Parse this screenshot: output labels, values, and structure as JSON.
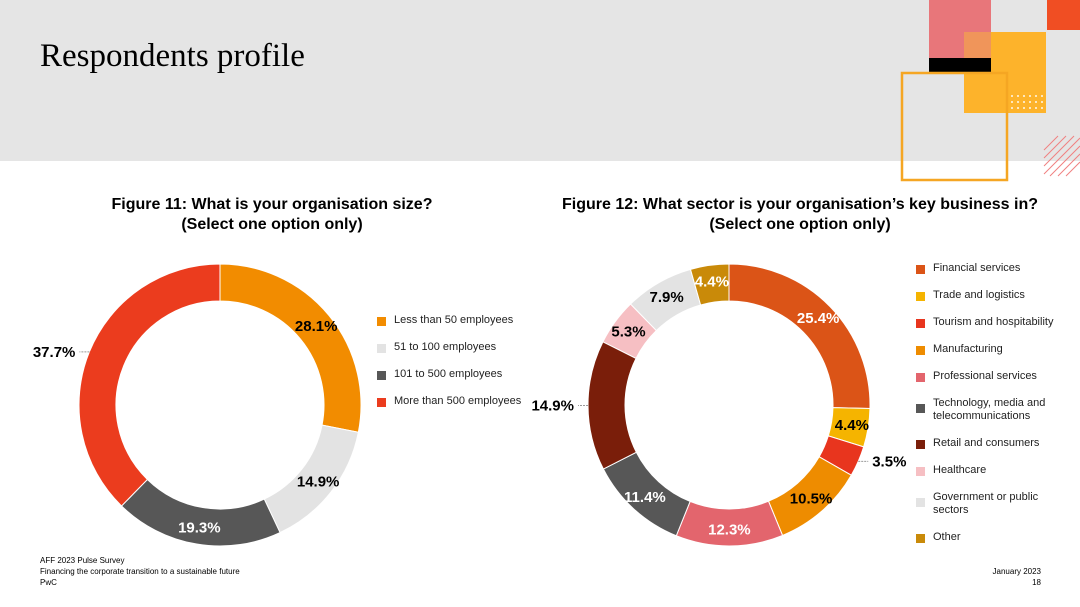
{
  "page": {
    "title": "Respondents profile",
    "footer_left": [
      "AFF 2023 Pulse Survey",
      "Financing the corporate transition to a sustainable future",
      "PwC"
    ],
    "footer_date": "January 2023",
    "page_number": "18"
  },
  "colors": {
    "header_bg": "#e5e5e5",
    "deco_pink": "#e8767a",
    "deco_yellow": "#fdb32b",
    "deco_orange": "#f5a623",
    "deco_red": "#f04e23",
    "deco_black": "#000000"
  },
  "chart_data": [
    {
      "type": "pie",
      "title_lines": [
        "Figure 11: What is your organisation size?",
        "(Select one option only)"
      ],
      "categories": [
        "Less than 50 employees",
        "51 to 100 employees",
        "101 to 500 employees",
        "More than 500 employees"
      ],
      "values": [
        28.1,
        14.9,
        19.3,
        37.7
      ],
      "labels": [
        "28.1%",
        "14.9%",
        "19.3%",
        "37.7%"
      ],
      "colors": [
        "#f28c00",
        "#e3e3e3",
        "#575757",
        "#eb3c1e"
      ],
      "label_colors": [
        "#000000",
        "#000000",
        "#ffffff",
        "#000000"
      ],
      "legend_position": "right"
    },
    {
      "type": "pie",
      "title_lines": [
        "Figure 12: What sector is your organisation’s key business in?",
        "(Select one option only)"
      ],
      "categories": [
        "Financial services",
        "Trade and logistics",
        "Tourism and hospitability",
        "Manufacturing",
        "Professional services",
        "Technology, media and telecommunications",
        "Retail and consumers",
        "Healthcare",
        "Government or public sectors",
        "Other"
      ],
      "legend_lines": [
        [
          "Financial services"
        ],
        [
          "Trade and logistics"
        ],
        [
          "Tourism and hospitability"
        ],
        [
          "Manufacturing"
        ],
        [
          "Professional services"
        ],
        [
          "Technology, media and",
          "telecommunications"
        ],
        [
          "Retail and consumers"
        ],
        [
          "Healthcare"
        ],
        [
          "Government or public",
          "sectors"
        ],
        [
          "Other"
        ]
      ],
      "values": [
        25.4,
        4.4,
        3.5,
        10.5,
        12.3,
        11.4,
        14.9,
        5.3,
        7.9,
        4.4
      ],
      "labels": [
        "25.4%",
        "4.4%",
        "3.5%",
        "10.5%",
        "12.3%",
        "11.4%",
        "14.9%",
        "5.3%",
        "7.9%",
        "4.4%"
      ],
      "colors": [
        "#db5417",
        "#f5b400",
        "#e8351e",
        "#ee8c00",
        "#e3656d",
        "#575757",
        "#7a1e0a",
        "#f6bfc3",
        "#e3e3e3",
        "#c98a09"
      ],
      "label_colors": [
        "#ffffff",
        "#000000",
        "#000000",
        "#000000",
        "#ffffff",
        "#ffffff",
        "#000000",
        "#000000",
        "#000000",
        "#ffffff"
      ],
      "legend_position": "right"
    }
  ]
}
